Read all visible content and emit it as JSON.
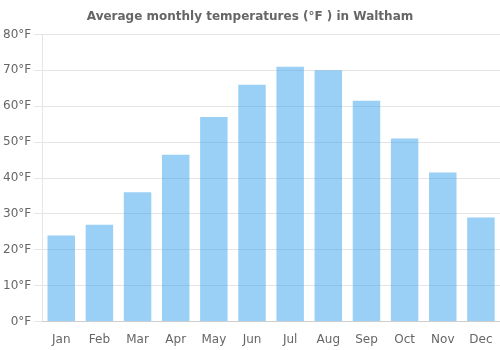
{
  "chart_data": {
    "type": "bar",
    "title": "Average monthly temperatures (°F ) in Waltham",
    "categories": [
      "Jan",
      "Feb",
      "Mar",
      "Apr",
      "May",
      "Jun",
      "Jul",
      "Aug",
      "Sep",
      "Oct",
      "Nov",
      "Dec"
    ],
    "values": [
      24,
      27,
      36,
      46.5,
      57,
      66,
      71,
      70,
      61.5,
      51,
      41.5,
      29
    ],
    "ylim": [
      0,
      80
    ],
    "yticks": [
      {
        "value": 0,
        "label": "0°F"
      },
      {
        "value": 10,
        "label": "10°F"
      },
      {
        "value": 20,
        "label": "20°F"
      },
      {
        "value": 30,
        "label": "30°F"
      },
      {
        "value": 40,
        "label": "40°F"
      },
      {
        "value": 50,
        "label": "50°F"
      },
      {
        "value": 60,
        "label": "60°F"
      },
      {
        "value": 70,
        "label": "70°F"
      },
      {
        "value": 80,
        "label": "80°F"
      }
    ],
    "grid": true
  }
}
